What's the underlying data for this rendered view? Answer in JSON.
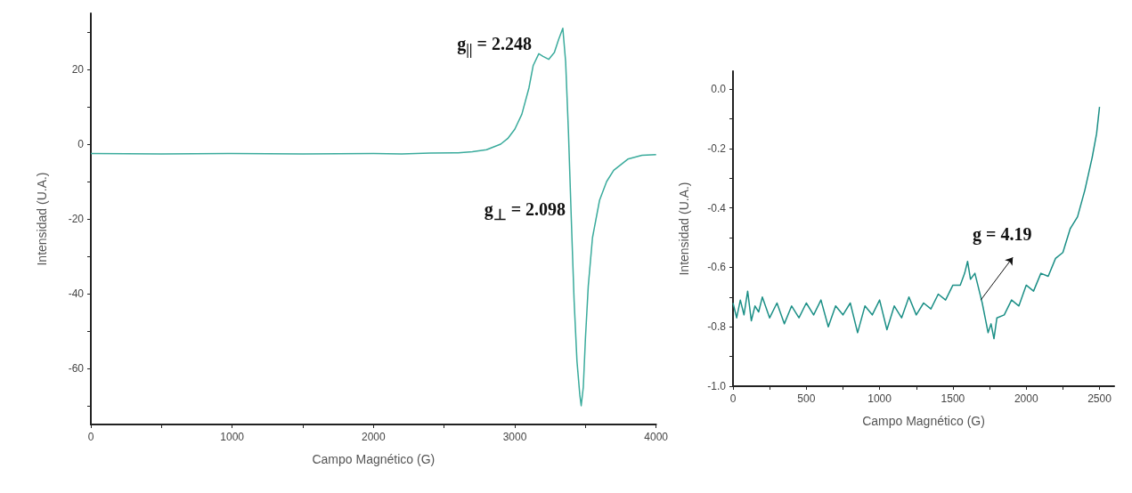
{
  "chart_data": [
    {
      "type": "line",
      "xlabel": "Campo Magnético (G)",
      "ylabel": "Intensidad (U.A.)",
      "xlim": [
        0,
        4000
      ],
      "ylim": [
        -75,
        35
      ],
      "xticks": [
        0,
        {
          "value": 500,
          "label": null
        },
        1000,
        {
          "value": 1500,
          "label": null
        },
        2000,
        {
          "value": 2500,
          "label": null
        },
        3000,
        {
          "value": 3500,
          "label": null
        },
        4000
      ],
      "yticks": [
        {
          "value": -70,
          "label": null
        },
        -60,
        {
          "value": -50,
          "label": null
        },
        -40,
        {
          "value": -30,
          "label": null
        },
        -20,
        {
          "value": -10,
          "label": null
        },
        0,
        {
          "value": 10,
          "label": null
        },
        20,
        {
          "value": 30,
          "label": null
        }
      ],
      "grid": false,
      "marker": "none",
      "line_style": "solid",
      "series": [
        {
          "color": "#3aab9c",
          "x": [
            0,
            500,
            1000,
            1500,
            2000,
            2200,
            2400,
            2600,
            2700,
            2800,
            2900,
            2950,
            3000,
            3050,
            3100,
            3130,
            3170,
            3200,
            3240,
            3280,
            3310,
            3340,
            3360,
            3380,
            3400,
            3420,
            3440,
            3460,
            3470,
            3485,
            3500,
            3520,
            3550,
            3600,
            3650,
            3700,
            3800,
            3900,
            4000
          ],
          "values": [
            -2.5,
            -2.6,
            -2.5,
            -2.6,
            -2.5,
            -2.6,
            -2.4,
            -2.3,
            -2.0,
            -1.5,
            0,
            1.5,
            4,
            8,
            15,
            21,
            24.2,
            23.5,
            22.7,
            24.5,
            28,
            31,
            22,
            3,
            -20,
            -42,
            -58,
            -67,
            -70,
            -65,
            -52,
            -38,
            -25,
            -15,
            -10,
            -7,
            -4,
            -3,
            -2.8
          ]
        }
      ],
      "annotations": [
        {
          "text": "g$_{||}$ = 2.248",
          "x": 3170,
          "y": 24.2
        },
        {
          "text": "g$_{⊥}$ = 2.098",
          "x": 3410,
          "y": -20
        }
      ]
    },
    {
      "type": "line",
      "xlabel": "Campo Magnético (G)",
      "ylabel": "Intensidad (U.A.)",
      "xlim": [
        0,
        2600
      ],
      "ylim": [
        -1.0,
        0.06
      ],
      "xticks": [
        0,
        {
          "value": 250,
          "label": null
        },
        500,
        {
          "value": 750,
          "label": null
        },
        1000,
        {
          "value": 1250,
          "label": null
        },
        1500,
        {
          "value": 1750,
          "label": null
        },
        2000,
        {
          "value": 2250,
          "label": null
        },
        2500
      ],
      "yticks": [
        {
          "value": -1.0,
          "label": "-1.0"
        },
        {
          "value": -0.9,
          "label": null
        },
        -0.8,
        {
          "value": -0.7,
          "label": null
        },
        -0.6,
        {
          "value": -0.5,
          "label": null
        },
        -0.4,
        {
          "value": -0.3,
          "label": null
        },
        -0.2,
        {
          "value": -0.1,
          "label": null
        },
        {
          "value": 0,
          "label": "0.0"
        }
      ],
      "grid": false,
      "marker": "none",
      "line_style": "solid",
      "series": [
        {
          "color": "#1b8f86",
          "x": [
            0,
            25,
            50,
            75,
            100,
            125,
            150,
            175,
            200,
            250,
            300,
            350,
            400,
            450,
            500,
            550,
            600,
            650,
            700,
            750,
            800,
            850,
            900,
            950,
            1000,
            1050,
            1100,
            1150,
            1200,
            1250,
            1300,
            1350,
            1400,
            1450,
            1500,
            1550,
            1580,
            1600,
            1620,
            1650,
            1680,
            1700,
            1720,
            1740,
            1760,
            1780,
            1800,
            1850,
            1900,
            1950,
            2000,
            2050,
            2100,
            2150,
            2200,
            2250,
            2300,
            2350,
            2400,
            2450,
            2480,
            2500
          ],
          "values": [
            -0.72,
            -0.77,
            -0.71,
            -0.76,
            -0.68,
            -0.78,
            -0.73,
            -0.75,
            -0.7,
            -0.77,
            -0.72,
            -0.79,
            -0.73,
            -0.77,
            -0.72,
            -0.76,
            -0.71,
            -0.8,
            -0.73,
            -0.76,
            -0.72,
            -0.82,
            -0.73,
            -0.76,
            -0.71,
            -0.81,
            -0.73,
            -0.77,
            -0.7,
            -0.76,
            -0.72,
            -0.74,
            -0.69,
            -0.71,
            -0.66,
            -0.66,
            -0.62,
            -0.58,
            -0.64,
            -0.62,
            -0.68,
            -0.72,
            -0.77,
            -0.82,
            -0.79,
            -0.84,
            -0.77,
            -0.76,
            -0.71,
            -0.73,
            -0.66,
            -0.68,
            -0.62,
            -0.63,
            -0.57,
            -0.55,
            -0.47,
            -0.43,
            -0.34,
            -0.23,
            -0.15,
            -0.06
          ]
        }
      ],
      "annotations": [
        {
          "text": "g = 4.19",
          "x": 1690,
          "y": -0.71
        }
      ]
    }
  ]
}
